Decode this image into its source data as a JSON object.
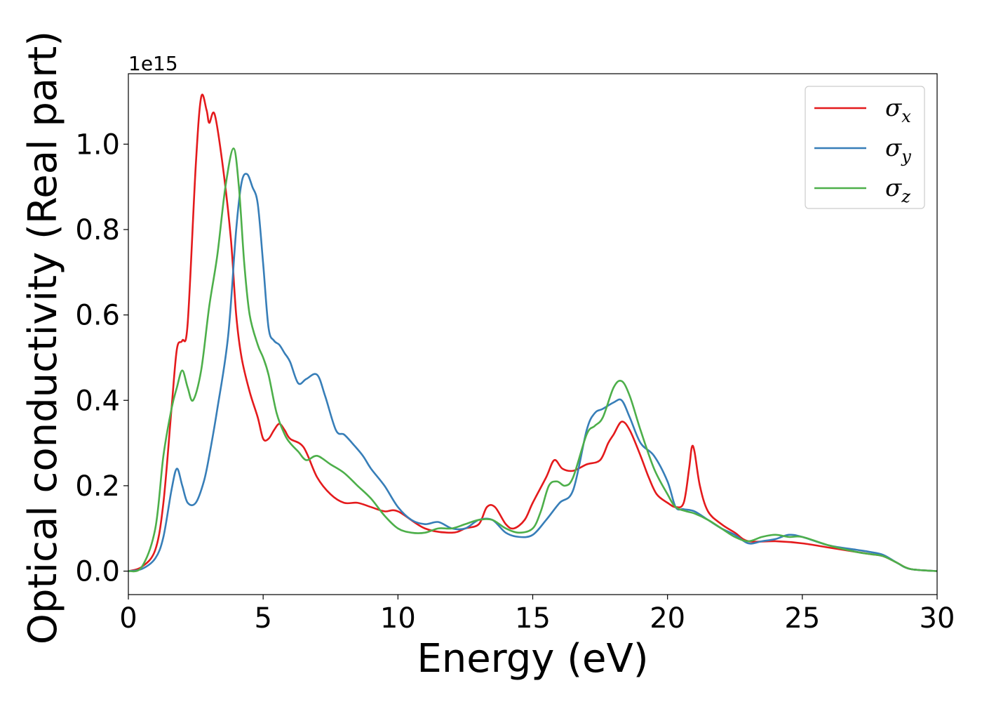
{
  "chart_data": {
    "type": "line",
    "xlabel": "Energy (eV)",
    "ylabel": "Optical conductivity (Real part)",
    "y_offset_label": "1e15",
    "xlim": [
      0,
      30
    ],
    "ylim": [
      -0.055,
      1.165
    ],
    "x_ticks": [
      0,
      5,
      10,
      15,
      20,
      25,
      30
    ],
    "y_ticks": [
      0.0,
      0.2,
      0.4,
      0.6,
      0.8,
      1.0
    ],
    "x_tick_labels": [
      "0",
      "5",
      "10",
      "15",
      "20",
      "25",
      "30"
    ],
    "y_tick_labels": [
      "0.0",
      "0.2",
      "0.4",
      "0.6",
      "0.8",
      "1.0"
    ],
    "grid": false,
    "legend_position": "top-right",
    "series": [
      {
        "name": "σx",
        "symbol": "σ",
        "subscript": "x",
        "color": "#e41a1c",
        "x": [
          0,
          0.5,
          1.0,
          1.3,
          1.6,
          1.8,
          2.0,
          2.2,
          2.5,
          2.7,
          2.9,
          3.0,
          3.2,
          3.5,
          3.8,
          4.0,
          4.2,
          4.5,
          4.8,
          5.0,
          5.2,
          5.4,
          5.6,
          5.8,
          6.0,
          6.5,
          7.0,
          7.5,
          8.0,
          8.5,
          9.0,
          9.5,
          10.0,
          11.0,
          12.0,
          12.5,
          13.0,
          13.3,
          13.6,
          14.0,
          14.3,
          14.7,
          15.0,
          15.5,
          15.8,
          16.1,
          16.5,
          17.0,
          17.5,
          17.8,
          18.0,
          18.3,
          18.6,
          19.0,
          19.3,
          19.6,
          20.0,
          20.3,
          20.6,
          20.8,
          20.9,
          21.0,
          21.2,
          21.5,
          22.0,
          22.5,
          23.0,
          24.0,
          25.0,
          26.0,
          27.0,
          27.5,
          28.0,
          28.5,
          29.0,
          30.0
        ],
        "y": [
          0,
          0.01,
          0.05,
          0.16,
          0.38,
          0.52,
          0.54,
          0.58,
          0.95,
          1.11,
          1.08,
          1.05,
          1.07,
          0.95,
          0.78,
          0.6,
          0.5,
          0.42,
          0.36,
          0.31,
          0.31,
          0.33,
          0.345,
          0.33,
          0.31,
          0.29,
          0.22,
          0.18,
          0.16,
          0.16,
          0.15,
          0.14,
          0.14,
          0.1,
          0.09,
          0.1,
          0.11,
          0.15,
          0.15,
          0.11,
          0.1,
          0.12,
          0.16,
          0.22,
          0.26,
          0.24,
          0.235,
          0.25,
          0.26,
          0.3,
          0.32,
          0.35,
          0.33,
          0.27,
          0.22,
          0.18,
          0.16,
          0.15,
          0.16,
          0.24,
          0.29,
          0.28,
          0.2,
          0.14,
          0.11,
          0.09,
          0.07,
          0.07,
          0.065,
          0.055,
          0.045,
          0.04,
          0.035,
          0.02,
          0.005,
          0
        ]
      },
      {
        "name": "σy",
        "symbol": "σ",
        "subscript": "y",
        "color": "#377eb8",
        "x": [
          0,
          0.5,
          1.0,
          1.3,
          1.6,
          1.8,
          2.0,
          2.2,
          2.5,
          2.8,
          3.0,
          3.3,
          3.7,
          4.0,
          4.2,
          4.4,
          4.6,
          4.8,
          5.0,
          5.2,
          5.4,
          5.6,
          5.8,
          6.0,
          6.3,
          6.6,
          7.0,
          7.3,
          7.7,
          8.0,
          8.3,
          8.7,
          9.0,
          9.5,
          10.0,
          10.5,
          11.0,
          11.5,
          12.0,
          12.5,
          13.0,
          13.5,
          14.0,
          14.5,
          15.0,
          15.5,
          16.0,
          16.5,
          17.0,
          17.3,
          17.6,
          18.0,
          18.3,
          18.6,
          19.0,
          19.5,
          20.0,
          20.3,
          20.6,
          21.0,
          21.5,
          22.0,
          22.5,
          23.0,
          23.5,
          24.0,
          24.5,
          25.0,
          26.0,
          27.0,
          27.5,
          28.0,
          28.5,
          29.0,
          30.0
        ],
        "y": [
          0,
          0.005,
          0.03,
          0.08,
          0.19,
          0.24,
          0.2,
          0.16,
          0.16,
          0.21,
          0.27,
          0.38,
          0.55,
          0.8,
          0.91,
          0.93,
          0.9,
          0.86,
          0.72,
          0.57,
          0.54,
          0.53,
          0.51,
          0.49,
          0.44,
          0.45,
          0.46,
          0.41,
          0.33,
          0.32,
          0.3,
          0.27,
          0.24,
          0.2,
          0.15,
          0.12,
          0.11,
          0.115,
          0.1,
          0.1,
          0.12,
          0.12,
          0.09,
          0.08,
          0.085,
          0.12,
          0.16,
          0.19,
          0.33,
          0.37,
          0.38,
          0.395,
          0.4,
          0.36,
          0.3,
          0.27,
          0.21,
          0.15,
          0.145,
          0.14,
          0.12,
          0.1,
          0.085,
          0.065,
          0.07,
          0.075,
          0.085,
          0.08,
          0.06,
          0.05,
          0.045,
          0.038,
          0.02,
          0.005,
          0
        ]
      },
      {
        "name": "σz",
        "symbol": "σ",
        "subscript": "z",
        "color": "#4daf4a",
        "x": [
          0,
          0.5,
          1.0,
          1.3,
          1.6,
          1.8,
          2.0,
          2.2,
          2.4,
          2.7,
          3.0,
          3.3,
          3.6,
          3.9,
          4.1,
          4.3,
          4.5,
          4.8,
          5.0,
          5.2,
          5.5,
          5.8,
          6.0,
          6.3,
          6.6,
          7.0,
          7.5,
          8.0,
          8.5,
          9.0,
          9.5,
          10.0,
          10.5,
          11.0,
          11.5,
          12.0,
          12.5,
          13.0,
          13.5,
          14.0,
          14.5,
          15.0,
          15.3,
          15.6,
          15.9,
          16.2,
          16.5,
          17.0,
          17.3,
          17.6,
          18.0,
          18.3,
          18.6,
          19.0,
          19.5,
          20.0,
          20.3,
          20.7,
          21.0,
          21.5,
          22.0,
          22.5,
          23.0,
          23.5,
          24.0,
          24.5,
          25.0,
          26.0,
          27.0,
          27.5,
          28.0,
          28.5,
          29.0,
          30.0
        ],
        "y": [
          0,
          0.01,
          0.1,
          0.27,
          0.38,
          0.43,
          0.47,
          0.43,
          0.4,
          0.47,
          0.62,
          0.74,
          0.9,
          0.99,
          0.9,
          0.72,
          0.6,
          0.53,
          0.5,
          0.46,
          0.37,
          0.32,
          0.3,
          0.28,
          0.26,
          0.27,
          0.25,
          0.23,
          0.2,
          0.17,
          0.13,
          0.1,
          0.09,
          0.09,
          0.1,
          0.1,
          0.11,
          0.12,
          0.12,
          0.1,
          0.09,
          0.1,
          0.14,
          0.2,
          0.21,
          0.2,
          0.22,
          0.32,
          0.34,
          0.36,
          0.43,
          0.445,
          0.41,
          0.33,
          0.24,
          0.18,
          0.15,
          0.14,
          0.135,
          0.12,
          0.1,
          0.08,
          0.07,
          0.08,
          0.085,
          0.08,
          0.08,
          0.06,
          0.045,
          0.04,
          0.035,
          0.02,
          0.005,
          0
        ]
      }
    ]
  }
}
